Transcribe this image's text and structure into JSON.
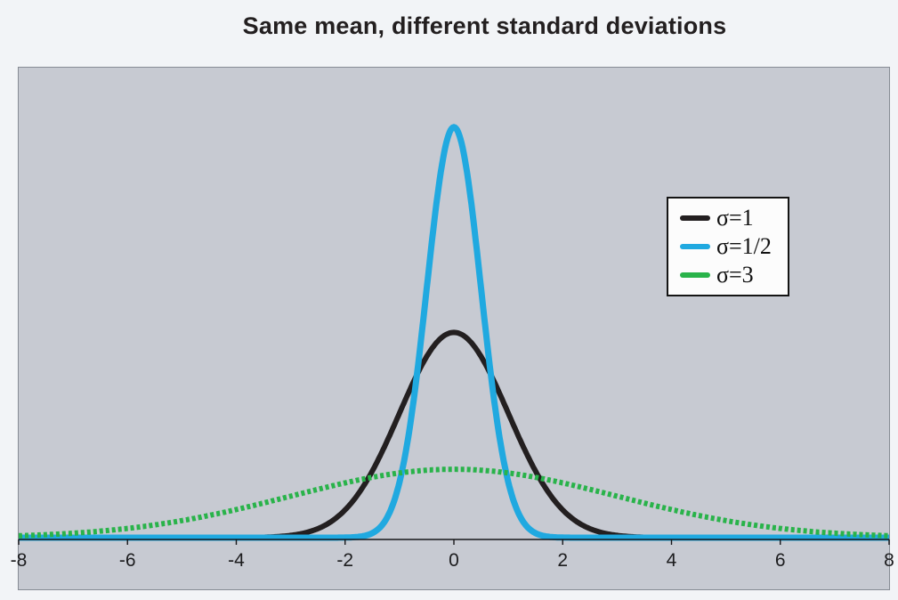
{
  "title": "Same mean, different standard deviations",
  "colors": {
    "page_background": "#f2f4f7",
    "panel_background": "#c7cad2",
    "panel_border": "#878c95",
    "axis": "#17171a",
    "tick_label": "#1c1c1e",
    "title": "#231f20",
    "legend_background": "#fcfcfc",
    "legend_border": "#141414"
  },
  "chart_data": {
    "type": "line",
    "title": "Same mean, different standard deviations",
    "description": "Normal probability density curves with mean 0 and different standard deviations",
    "mean": 0,
    "x_range": [
      -8,
      8
    ],
    "x_ticks": [
      -8,
      -6,
      -4,
      -2,
      0,
      2,
      4,
      6,
      8
    ],
    "x_tick_labels": [
      "-8",
      "-6",
      "-4",
      "-2",
      "0",
      "2",
      "4",
      "6",
      "8"
    ],
    "grid": false,
    "y_axis_shown": false,
    "legend_position": "upper right",
    "series": [
      {
        "name": "σ=1",
        "sigma": 1,
        "peak_density": 0.3989,
        "color": "#231f20",
        "line_style": "solid",
        "stroke_width": 6
      },
      {
        "name": "σ=1/2",
        "sigma": 0.5,
        "peak_density": 0.7979,
        "color": "#20a9e0",
        "line_style": "solid",
        "stroke_width": 7
      },
      {
        "name": "σ=3",
        "sigma": 3,
        "peak_density": 0.133,
        "color": "#29b34a",
        "line_style": "dashed",
        "stroke_width": 6
      }
    ]
  }
}
